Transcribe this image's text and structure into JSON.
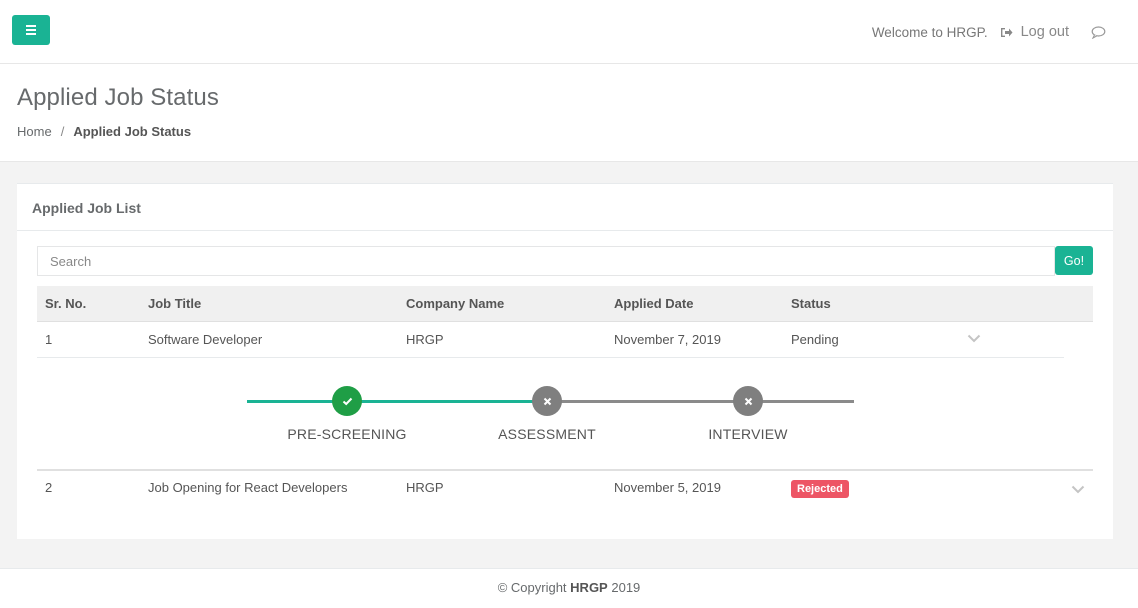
{
  "topbar": {
    "welcome_text": "Welcome to HRGP.",
    "logout_label": "Log out",
    "icons": [
      "menu-icon",
      "sign-out-icon",
      "comment-icon"
    ]
  },
  "heading": {
    "title": "Applied Job Status",
    "breadcrumb": {
      "home": "Home",
      "separator": "/",
      "current": "Applied Job Status"
    }
  },
  "panel": {
    "title": "Applied Job List",
    "search": {
      "placeholder": "Search",
      "value": ""
    },
    "go_label": "Go!",
    "columns": [
      "Sr. No.",
      "Job Title",
      "Company Name",
      "Applied Date",
      "Status"
    ],
    "rows": [
      {
        "sr": "1",
        "title": "Software Developer",
        "company": "HRGP",
        "date": "November 7, 2019",
        "status": "Pending",
        "expanded": true
      },
      {
        "sr": "2",
        "title": "Job Opening for React Developers",
        "company": "HRGP",
        "date": "November 5, 2019",
        "status": "Rejected",
        "expanded": false
      }
    ],
    "progress_steps": [
      {
        "label": "PRE-SCREENING",
        "state": "complete"
      },
      {
        "label": "ASSESSMENT",
        "state": "incomplete"
      },
      {
        "label": "INTERVIEW",
        "state": "incomplete"
      }
    ]
  },
  "footer": {
    "prefix": "© Copyright",
    "brand": "HRGP",
    "year": "2019"
  },
  "colors": {
    "primary": "#1ab394",
    "success": "#1f9e46",
    "danger": "#ed5565",
    "inactive": "#7f7f7f"
  }
}
